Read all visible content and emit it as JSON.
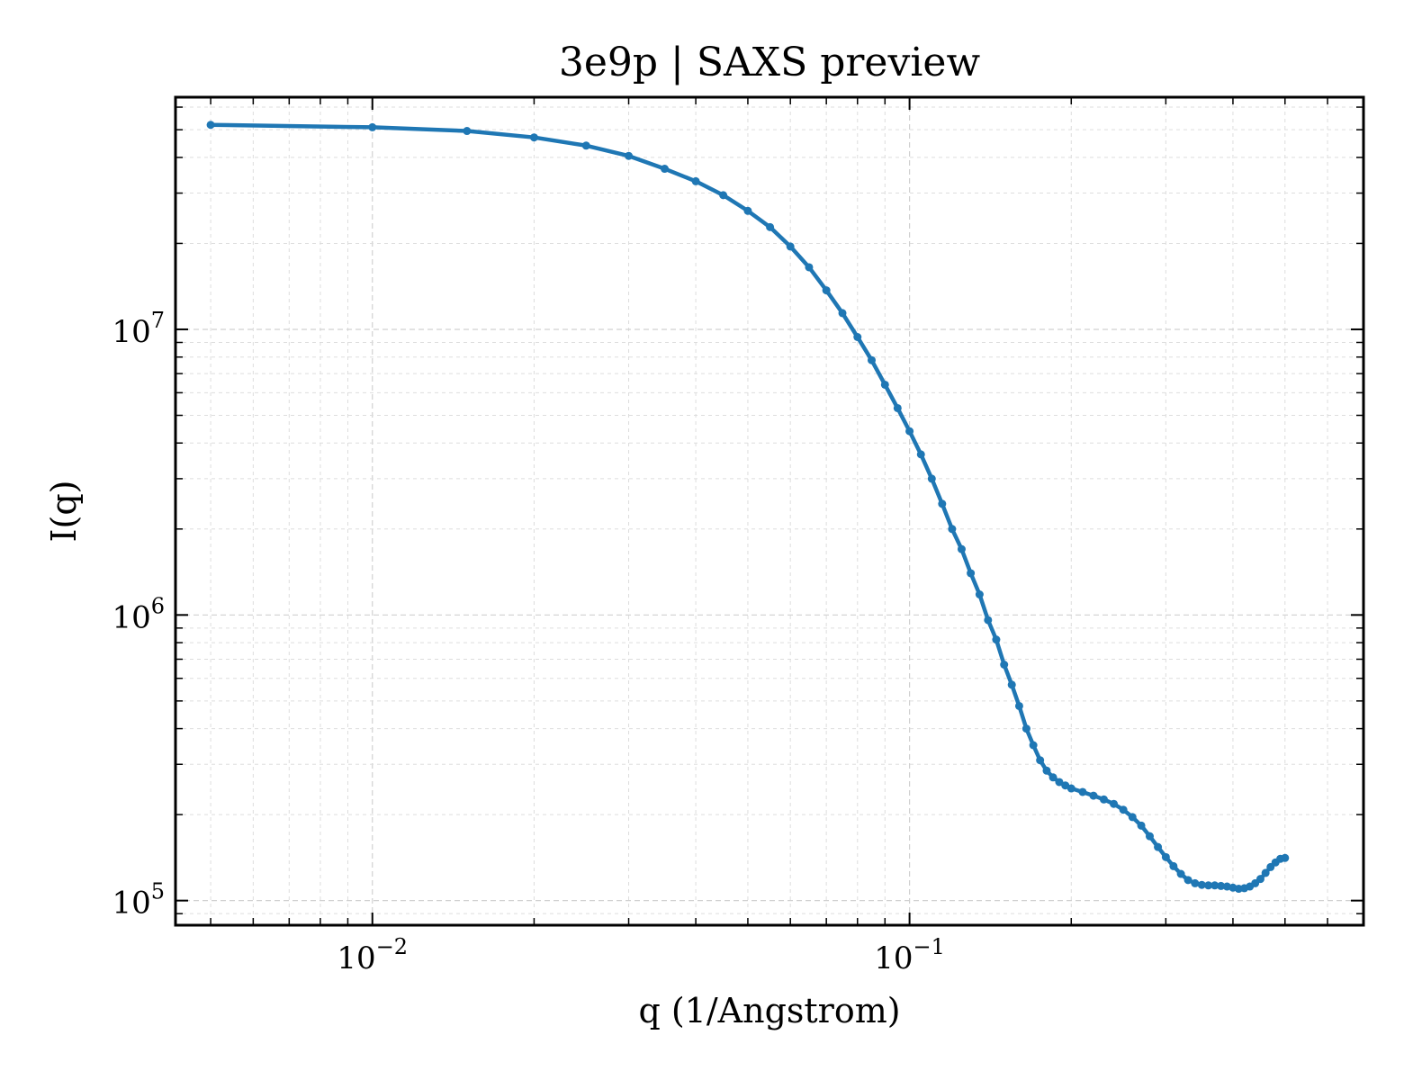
{
  "chart_data": {
    "type": "line",
    "title": "3e9p | SAXS preview",
    "xlabel": "q (1/Angstrom)",
    "ylabel": "I(q)",
    "xscale": "log",
    "yscale": "log",
    "xlim": [
      0.0043,
      0.7
    ],
    "ylim": [
      82000,
      65000000
    ],
    "grid": true,
    "legend": "none",
    "color": "#1f77b4",
    "x_ticks": [
      {
        "value": 0.01,
        "base": "10",
        "exp": "−2"
      },
      {
        "value": 0.1,
        "base": "10",
        "exp": "−1"
      }
    ],
    "y_ticks": [
      {
        "value": 100000,
        "base": "10",
        "exp": "5"
      },
      {
        "value": 1000000,
        "base": "10",
        "exp": "6"
      },
      {
        "value": 10000000,
        "base": "10",
        "exp": "7"
      }
    ],
    "series": [
      {
        "x": [
          0.005,
          0.01,
          0.015,
          0.02,
          0.025,
          0.03,
          0.035,
          0.04,
          0.045,
          0.05,
          0.055,
          0.06,
          0.065,
          0.07,
          0.075,
          0.08,
          0.085,
          0.09,
          0.095,
          0.1,
          0.105,
          0.11,
          0.115,
          0.12,
          0.125,
          0.13,
          0.135,
          0.14,
          0.145,
          0.15,
          0.155,
          0.16,
          0.165,
          0.17,
          0.175,
          0.18,
          0.185,
          0.19,
          0.195,
          0.2,
          0.21,
          0.22,
          0.23,
          0.24,
          0.25,
          0.26,
          0.27,
          0.28,
          0.29,
          0.3,
          0.31,
          0.32,
          0.33,
          0.34,
          0.35,
          0.36,
          0.37,
          0.38,
          0.39,
          0.4,
          0.41,
          0.42,
          0.43,
          0.44,
          0.45,
          0.46,
          0.47,
          0.48,
          0.49,
          0.5
        ],
        "y": [
          52000000,
          51000000,
          49500000,
          47000000,
          44000000,
          40500000,
          36500000,
          33000000,
          29500000,
          26000000,
          22800000,
          19500000,
          16500000,
          13700000,
          11400000,
          9400000,
          7800000,
          6400000,
          5300000,
          4400000,
          3650000,
          3000000,
          2450000,
          2000000,
          1700000,
          1400000,
          1180000,
          960000,
          820000,
          670000,
          570000,
          480000,
          400000,
          350000,
          310000,
          285000,
          270000,
          260000,
          253000,
          247000,
          240000,
          233000,
          226000,
          218000,
          208000,
          196000,
          183000,
          168000,
          154000,
          142000,
          132000,
          124000,
          118000,
          115000,
          113500,
          113000,
          113000,
          112500,
          112000,
          111000,
          110000,
          110500,
          112000,
          115000,
          119000,
          125000,
          131000,
          136000,
          140000,
          141000
        ]
      }
    ]
  }
}
